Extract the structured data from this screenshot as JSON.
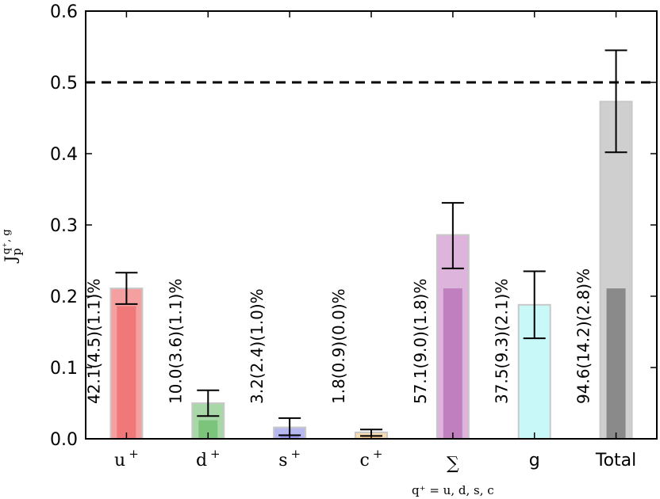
{
  "chart_data": {
    "type": "bar",
    "ylabel": "J_p^{q⁺, g}",
    "ylabel_parts": {
      "main": "J",
      "sub": "p",
      "sup": "q⁺, g"
    },
    "ylim": [
      0,
      0.6
    ],
    "yticks": [
      "0.0",
      "0.1",
      "0.2",
      "0.3",
      "0.4",
      "0.5",
      "0.6"
    ],
    "reference_line": {
      "y": 0.5,
      "style": "dashed"
    },
    "categories": [
      {
        "key": "u",
        "label": "u",
        "sup": "+",
        "sub_label": ""
      },
      {
        "key": "d",
        "label": "d",
        "sup": "+",
        "sub_label": ""
      },
      {
        "key": "s",
        "label": "s",
        "sup": "+",
        "sub_label": ""
      },
      {
        "key": "c",
        "label": "c",
        "sup": "+",
        "sub_label": ""
      },
      {
        "key": "sum",
        "label": "∑",
        "sup": "",
        "sub_label": "q⁺ = u, d, s, c"
      },
      {
        "key": "g",
        "label": "g",
        "sup": "",
        "sub_label": ""
      },
      {
        "key": "total",
        "label": "Total",
        "sup": "",
        "sub_label": ""
      }
    ],
    "bars": [
      {
        "value": 0.211,
        "inner": 0.186,
        "err_low": 0.189,
        "err_high": 0.233,
        "label": "42.1(4.5)(1.1)%",
        "color": "#f4a0a0",
        "inner_color": "#f07878"
      },
      {
        "value": 0.05,
        "inner": 0.026,
        "err_low": 0.032,
        "err_high": 0.068,
        "label": "10.0(3.6)(1.1)%",
        "color": "#a8d8a8",
        "inner_color": "#7cc47c"
      },
      {
        "value": 0.016,
        "inner": 0.004,
        "err_low": 0.005,
        "err_high": 0.029,
        "label": "3.2(2.4)(1.0)%",
        "color": "#b8b8f0",
        "inner_color": "#9a9ae8"
      },
      {
        "value": 0.009,
        "inner": 0.003,
        "err_low": 0.004,
        "err_high": 0.013,
        "label": "1.8(0.9)(0.0)%",
        "color": "#f8dcb0",
        "inner_color": "#f4c890"
      },
      {
        "value": 0.286,
        "inner": 0.211,
        "err_low": 0.239,
        "err_high": 0.331,
        "label": "57.1(9.0)(1.8)%",
        "color": "#dcb4dc",
        "inner_color": "#c080c0"
      },
      {
        "value": 0.188,
        "inner": 0,
        "err_low": 0.141,
        "err_high": 0.235,
        "label": "37.5(9.3)(2.1)%",
        "color": "#c8f8f8",
        "inner_color": "#c8f8f8"
      },
      {
        "value": 0.473,
        "inner": 0.211,
        "err_low": 0.402,
        "err_high": 0.545,
        "label": "94.6(14.2)(2.8)%",
        "color": "#cfcfcf",
        "inner_color": "#8a8a8a"
      }
    ]
  }
}
